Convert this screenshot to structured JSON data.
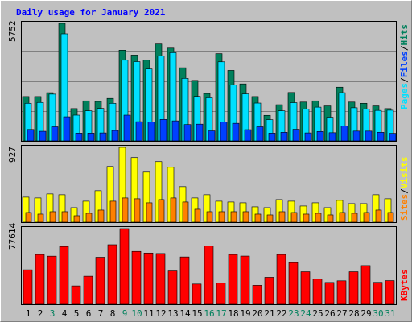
{
  "colors": {
    "background": "#C0C0C0",
    "title": "#0000FF",
    "hits": "#00805C",
    "files": "#00E0FF",
    "pages": "#0040FF",
    "visits": "#FFFF00",
    "sites": "#FF8000",
    "kbytes": "#FF0000",
    "weekend_day_label": "#00805C",
    "weekday_label": "#000000"
  },
  "chart_data": {
    "type": "bar",
    "title": "Daily usage for January 2021",
    "categories": [
      "1",
      "2",
      "3",
      "4",
      "5",
      "6",
      "7",
      "8",
      "9",
      "10",
      "11",
      "12",
      "13",
      "14",
      "15",
      "16",
      "17",
      "18",
      "19",
      "20",
      "21",
      "22",
      "23",
      "24",
      "25",
      "26",
      "27",
      "28",
      "29",
      "30",
      "31"
    ],
    "weekend_days": [
      "3",
      "9",
      "10",
      "16",
      "17",
      "23",
      "24",
      "30",
      "31"
    ],
    "panels": [
      {
        "name": "hits_files_pages",
        "max_label": "5752",
        "ymax": 5752,
        "legend": [
          "Pages",
          "/",
          "Files",
          "/",
          "Hits"
        ],
        "series": [
          {
            "name": "Hits",
            "values": [
              2170,
              2170,
              2360,
              5752,
              1580,
              1960,
              1930,
              2080,
              4440,
              4200,
              3950,
              4740,
              4540,
              3580,
              2960,
              2320,
              4270,
              3450,
              2790,
              2170,
              1250,
              1770,
              2370,
              1900,
              1960,
              1710,
              2630,
              1900,
              1840,
              1710,
              1580
            ]
          },
          {
            "name": "Files",
            "values": [
              1840,
              1880,
              2290,
              5240,
              1260,
              1470,
              1590,
              1840,
              3950,
              3880,
              3520,
              4150,
              4320,
              3060,
              2180,
              2110,
              3870,
              2730,
              2300,
              1850,
              1040,
              1470,
              1870,
              1560,
              1650,
              1160,
              2360,
              1620,
              1550,
              1490,
              1500
            ]
          },
          {
            "name": "Pages",
            "values": [
              560,
              470,
              690,
              1180,
              380,
              380,
              390,
              510,
              1260,
              940,
              930,
              1050,
              980,
              800,
              820,
              490,
              930,
              860,
              550,
              690,
              380,
              420,
              570,
              390,
              460,
              400,
              730,
              480,
              480,
              420,
              370
            ]
          }
        ]
      },
      {
        "name": "visits_sites",
        "max_label": "927",
        "ymax": 927,
        "legend": [
          "Sites",
          "/",
          "Visits"
        ],
        "series": [
          {
            "name": "Visits",
            "values": [
              310,
              300,
              350,
              340,
              180,
              260,
              390,
              690,
              927,
              800,
              620,
              750,
              680,
              440,
              300,
              340,
              260,
              250,
              240,
              190,
              180,
              280,
              260,
              200,
              240,
              180,
              270,
              230,
              230,
              340,
              290
            ]
          },
          {
            "name": "Sites",
            "values": [
              120,
              100,
              130,
              130,
              80,
              110,
              150,
              260,
              300,
              290,
              240,
              280,
              300,
              250,
              160,
              130,
              130,
              130,
              130,
              100,
              90,
              130,
              120,
              100,
              110,
              90,
              120,
              110,
              120,
              150,
              120
            ]
          }
        ]
      },
      {
        "name": "kbytes",
        "max_label": "77614",
        "ymax": 77614,
        "legend": [
          "KBytes"
        ],
        "series": [
          {
            "name": "KBytes",
            "values": [
              35400,
              51100,
              49400,
              59300,
              18900,
              28800,
              48300,
              61100,
              77614,
              54300,
              52600,
              52100,
              34200,
              48600,
              20800,
              59800,
              21700,
              51100,
              49500,
              19500,
              27700,
              51100,
              42800,
              33400,
              25800,
              22400,
              24100,
              33400,
              39700,
              22500,
              24300
            ]
          }
        ]
      }
    ]
  }
}
